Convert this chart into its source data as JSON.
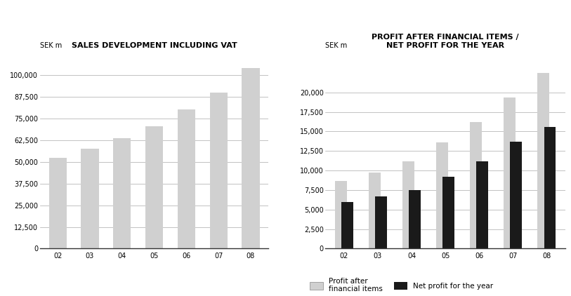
{
  "left_title": "SALES DEVELOPMENT INCLUDING VAT",
  "left_ylabel": "SEK m",
  "left_categories": [
    "02",
    "03",
    "04",
    "05",
    "06",
    "07",
    "08"
  ],
  "left_values": [
    52500,
    57500,
    63500,
    70500,
    80000,
    90000,
    104000
  ],
  "left_ylim": [
    0,
    112500
  ],
  "left_yticks": [
    0,
    12500,
    25000,
    37500,
    50000,
    62500,
    75000,
    87500,
    100000
  ],
  "left_ytick_labels": [
    "0",
    "12,500",
    "25,000",
    "37,500",
    "50,000",
    "62,500",
    "75,000",
    "87,500",
    "100,000"
  ],
  "right_title": "PROFIT AFTER FINANCIAL ITEMS /\nNET PROFIT FOR THE YEAR",
  "right_ylabel": "SEK m",
  "right_categories": [
    "02",
    "03",
    "04",
    "05",
    "06",
    "07",
    "08"
  ],
  "right_profit_after": [
    8700,
    9700,
    11200,
    13600,
    16200,
    19300,
    22500
  ],
  "right_net_profit": [
    6000,
    6700,
    7500,
    9200,
    11200,
    13700,
    15600
  ],
  "right_ylim": [
    0,
    25000
  ],
  "right_yticks": [
    0,
    2500,
    5000,
    7500,
    10000,
    12500,
    15000,
    17500,
    20000
  ],
  "right_ytick_labels": [
    "0",
    "2,500",
    "5,000",
    "7,500",
    "10,000",
    "12,500",
    "15,000",
    "17,500",
    "20,000"
  ],
  "bar_color_light": "#d0d0d0",
  "bar_color_dark": "#1a1a1a",
  "background_color": "#ffffff",
  "grid_color": "#aaaaaa",
  "title_fontsize": 8,
  "label_fontsize": 7,
  "tick_fontsize": 7,
  "legend_fontsize": 7.5,
  "legend_label_profit": "Profit after\nfinancial items",
  "legend_label_net": "Net profit for the year"
}
